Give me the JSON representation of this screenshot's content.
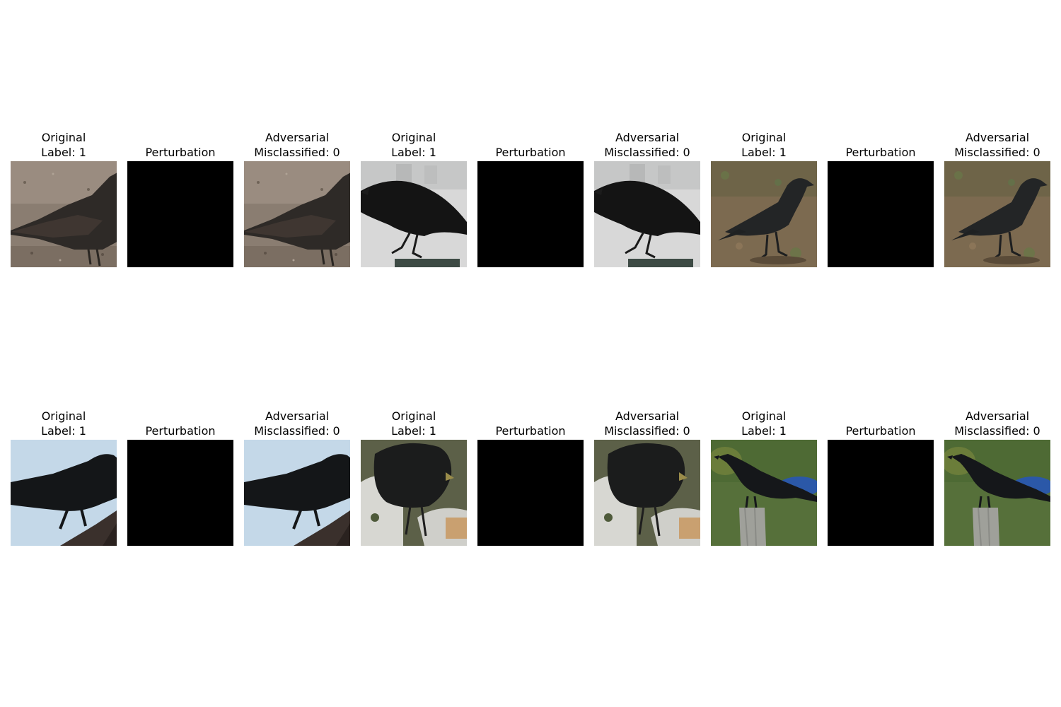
{
  "rows": [
    [
      {
        "kind": "original",
        "line1": "Original",
        "line2": "Label: 1",
        "scene": "gravel"
      },
      {
        "kind": "perturbation",
        "line1": "",
        "line2": "Perturbation"
      },
      {
        "kind": "adversarial",
        "line1": "Adversarial",
        "line2": "Misclassified: 0",
        "scene": "gravel"
      },
      {
        "kind": "original",
        "line1": "Original",
        "line2": "Label: 1",
        "scene": "grey-post"
      },
      {
        "kind": "perturbation",
        "line1": "",
        "line2": "Perturbation"
      },
      {
        "kind": "adversarial",
        "line1": "Adversarial",
        "line2": "Misclassified: 0",
        "scene": "grey-post"
      },
      {
        "kind": "original",
        "line1": "Original",
        "line2": "Label: 1",
        "scene": "dirt"
      },
      {
        "kind": "perturbation",
        "line1": "",
        "line2": "Perturbation"
      },
      {
        "kind": "adversarial",
        "line1": "Adversarial",
        "line2": "Misclassified: 0",
        "scene": "dirt"
      }
    ],
    [
      {
        "kind": "original",
        "line1": "Original",
        "line2": "Label: 1",
        "scene": "sky-branch"
      },
      {
        "kind": "perturbation",
        "line1": "",
        "line2": "Perturbation"
      },
      {
        "kind": "adversarial",
        "line1": "Adversarial",
        "line2": "Misclassified: 0",
        "scene": "sky-branch"
      },
      {
        "kind": "original",
        "line1": "Original",
        "line2": "Label: 1",
        "scene": "snow-moss"
      },
      {
        "kind": "perturbation",
        "line1": "",
        "line2": "Perturbation"
      },
      {
        "kind": "adversarial",
        "line1": "Adversarial",
        "line2": "Misclassified: 0",
        "scene": "snow-moss"
      },
      {
        "kind": "original",
        "line1": "Original",
        "line2": "Label: 1",
        "scene": "green-post"
      },
      {
        "kind": "perturbation",
        "line1": "",
        "line2": "Perturbation"
      },
      {
        "kind": "adversarial",
        "line1": "Adversarial",
        "line2": "Misclassified: 0",
        "scene": "green-post"
      }
    ]
  ],
  "colors": {
    "perturbation": "#000000",
    "background": "#ffffff"
  }
}
